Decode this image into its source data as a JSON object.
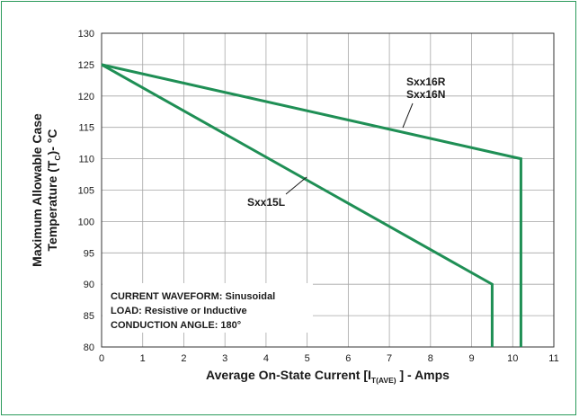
{
  "colors": {
    "frame": "#2a9a5a",
    "series": "#1f8f55",
    "grid": "#a6a6a6",
    "axis": "#333333",
    "text": "#1a1a1a"
  },
  "chart_data": {
    "type": "line",
    "title": "",
    "xlabel": "Average On-State Current [I",
    "xlabel_subscript": "T(AVE)",
    "xlabel_suffix": " ] - Amps",
    "ylabel_line1": "Maximum Allowable Case",
    "ylabel_line2_prefix": "Temperature (T",
    "ylabel_line2_subscript": "C",
    "ylabel_line2_suffix": ")- °C",
    "xlim": [
      0,
      11
    ],
    "ylim": [
      80,
      130
    ],
    "x_ticks": [
      "0",
      "1",
      "2",
      "3",
      "4",
      "5",
      "6",
      "7",
      "8",
      "9",
      "10",
      "11"
    ],
    "y_ticks": [
      "80",
      "85",
      "90",
      "95",
      "100",
      "105",
      "110",
      "115",
      "120",
      "125",
      "130"
    ],
    "grid": true,
    "series": [
      {
        "name": "Sxx16R Sxx16N",
        "label_lines": [
          "Sxx16R",
          "Sxx16N"
        ],
        "x": [
          0,
          10.2,
          10.2
        ],
        "y": [
          125,
          110,
          80
        ]
      },
      {
        "name": "Sxx15L",
        "label_lines": [
          "Sxx15L"
        ],
        "x": [
          0,
          9.5,
          9.5
        ],
        "y": [
          125,
          90,
          80
        ]
      }
    ],
    "annotations": [
      "CURRENT WAVEFORM: Sinusoidal",
      "LOAD: Resistive or Inductive",
      "CONDUCTION ANGLE: 180°"
    ]
  }
}
